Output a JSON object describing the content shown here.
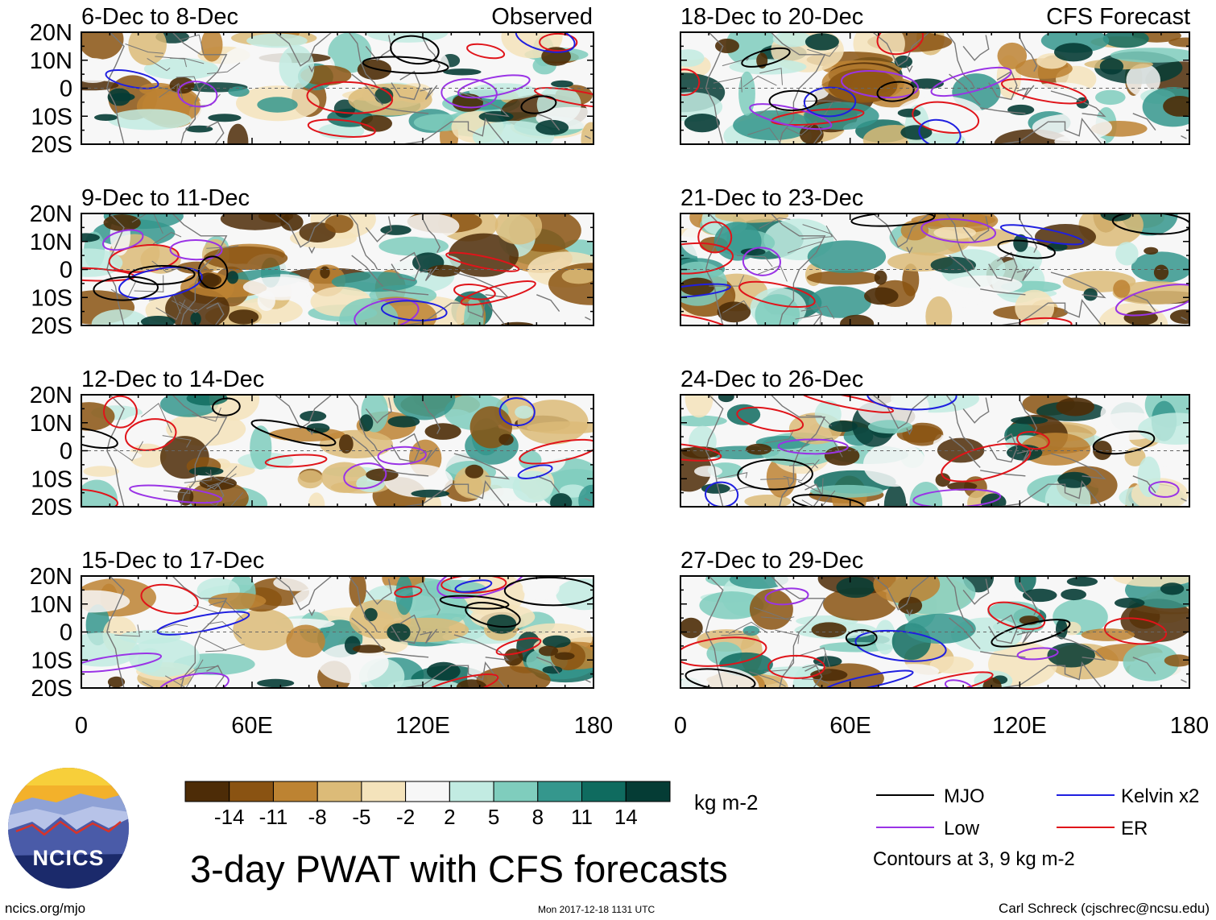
{
  "colors": {
    "mjo": "#000000",
    "kelvin": "#1f1fe0",
    "low": "#9a33e6",
    "er": "#e0141a",
    "coast": "#777777",
    "scale": [
      "#4d2c07",
      "#8a5312",
      "#bd8332",
      "#dcbb78",
      "#f4e3bb",
      "#f7f7f7",
      "#c2ebe2",
      "#7fcdbd",
      "#35978d",
      "#0f6b5f",
      "#053c35"
    ]
  },
  "header": {
    "observed_label": "Observed",
    "forecast_label": "CFS Forecast"
  },
  "panels": [
    {
      "title": "6-Dec to 8-Dec",
      "column": "left",
      "seed": 11
    },
    {
      "title": "9-Dec to 11-Dec",
      "column": "left",
      "seed": 23
    },
    {
      "title": "12-Dec to 14-Dec",
      "column": "left",
      "seed": 37
    },
    {
      "title": "15-Dec to 17-Dec",
      "column": "left",
      "seed": 41
    },
    {
      "title": "18-Dec to 20-Dec",
      "column": "right",
      "seed": 53
    },
    {
      "title": "21-Dec to 23-Dec",
      "column": "right",
      "seed": 67
    },
    {
      "title": "24-Dec to 26-Dec",
      "column": "right",
      "seed": 79
    },
    {
      "title": "27-Dec to 29-Dec",
      "column": "right",
      "seed": 83
    }
  ],
  "axes": {
    "lat_labels": [
      "20N",
      "10N",
      "0",
      "10S",
      "20S"
    ],
    "lon_labels": [
      "0",
      "60E",
      "120E",
      "180"
    ]
  },
  "colorbar": {
    "tick_labels": [
      "-14",
      "-11",
      "-8",
      "-5",
      "-2",
      "2",
      "5",
      "8",
      "11",
      "14"
    ],
    "units": "kg m-2"
  },
  "legend": {
    "items": [
      {
        "label": "MJO",
        "color_key": "mjo"
      },
      {
        "label": "Kelvin x2",
        "color_key": "kelvin"
      },
      {
        "label": "Low",
        "color_key": "low"
      },
      {
        "label": "ER",
        "color_key": "er"
      }
    ],
    "note": "Contours at 3, 9 kg m-2"
  },
  "footer": {
    "main_title": "3-day PWAT with CFS forecasts",
    "logo_text": "NCICS",
    "url": "ncics.org/mjo",
    "timestamp": "Mon 2017-12-18 1131 UTC",
    "credit": "Carl Schreck (cjschrec@ncsu.edu)"
  }
}
